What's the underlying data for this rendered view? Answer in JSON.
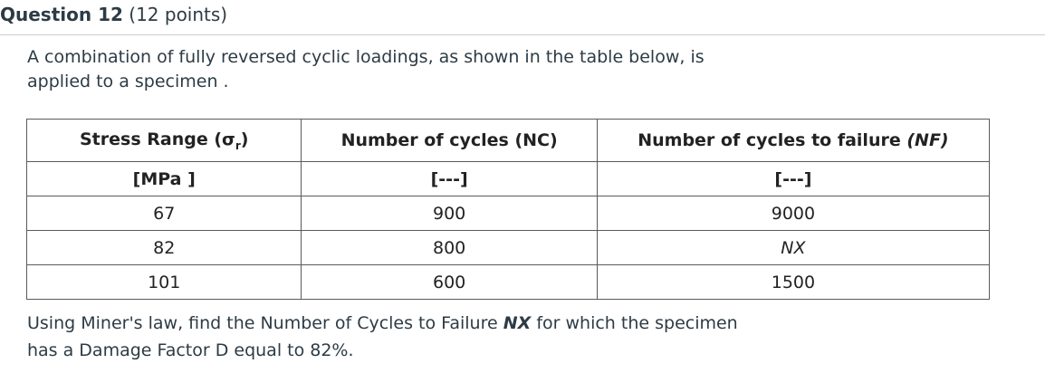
{
  "question": {
    "title": "Question 12",
    "points": "(12 points)"
  },
  "intro": {
    "line1": "A combination of fully reversed cyclic loadings, as shown in the table below, is",
    "line2": "applied to a specimen ."
  },
  "table": {
    "headers": {
      "stress_range_prefix": "Stress Range (",
      "stress_range_symbol": "σ",
      "stress_range_sub": "r",
      "stress_range_suffix": ")",
      "nc": "Number of  cycles (NC)",
      "nf_prefix": "Number of cycles to failure ",
      "nf_italic": "(NF)"
    },
    "units": [
      "[MPa ]",
      "[---]",
      "[---]"
    ],
    "rows": [
      {
        "stress": "67",
        "nc": "900",
        "nf": "9000"
      },
      {
        "stress": "82",
        "nc": "800",
        "nf": "NX"
      },
      {
        "stress": "101",
        "nc": "600",
        "nf": "1500"
      }
    ]
  },
  "outro": {
    "part1": "Using Miner's law, find the Number of Cycles to Failure ",
    "nx": "NX",
    "part2": " for which the specimen",
    "line2": "has a Damage Factor D equal to 82%."
  }
}
